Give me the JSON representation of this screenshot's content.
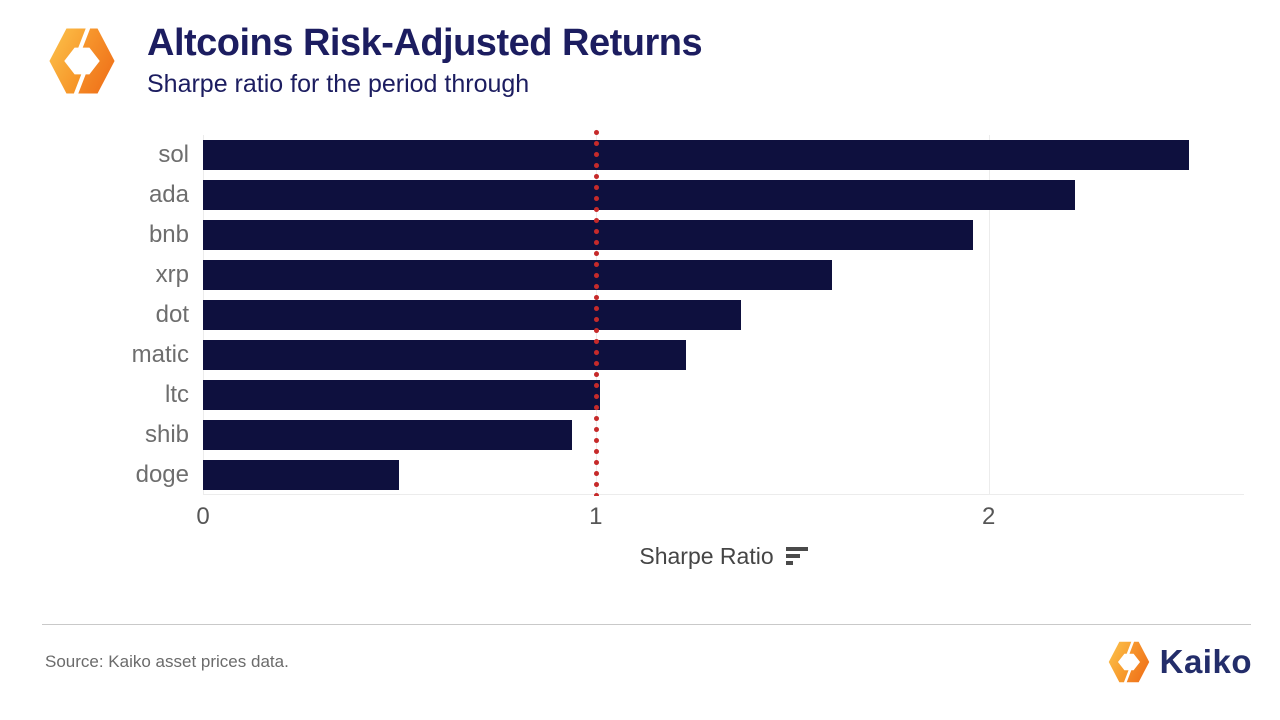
{
  "header": {
    "title": "Altcoins Risk-Adjusted Returns",
    "subtitle": "Sharpe ratio for the period through"
  },
  "chart_data": {
    "type": "bar",
    "orientation": "horizontal",
    "categories": [
      "sol",
      "ada",
      "bnb",
      "xrp",
      "dot",
      "matic",
      "ltc",
      "shib",
      "doge"
    ],
    "values": [
      2.51,
      2.22,
      1.96,
      1.6,
      1.37,
      1.23,
      1.01,
      0.94,
      0.5
    ],
    "title": "Altcoins Risk-Adjusted Returns",
    "xlabel": "Sharpe Ratio",
    "ylabel": "",
    "x_ticks": [
      0,
      1,
      2
    ],
    "xlim": [
      0,
      2.65
    ],
    "reference_line_x": 1,
    "grid": true,
    "legend": false,
    "bar_color": "#0e103e",
    "reference_line_color": "#c62a2a",
    "gridline_color": "#ececec",
    "label_color": "#6e6e6e"
  },
  "icons": {
    "header_logo": "kaiko-hexagon-logo",
    "xlabel_icon": "sort-descending-icon",
    "footer_logo": "kaiko-hexagon-logo"
  },
  "footer": {
    "source": "Source: Kaiko asset prices data.",
    "brand": "Kaiko"
  }
}
